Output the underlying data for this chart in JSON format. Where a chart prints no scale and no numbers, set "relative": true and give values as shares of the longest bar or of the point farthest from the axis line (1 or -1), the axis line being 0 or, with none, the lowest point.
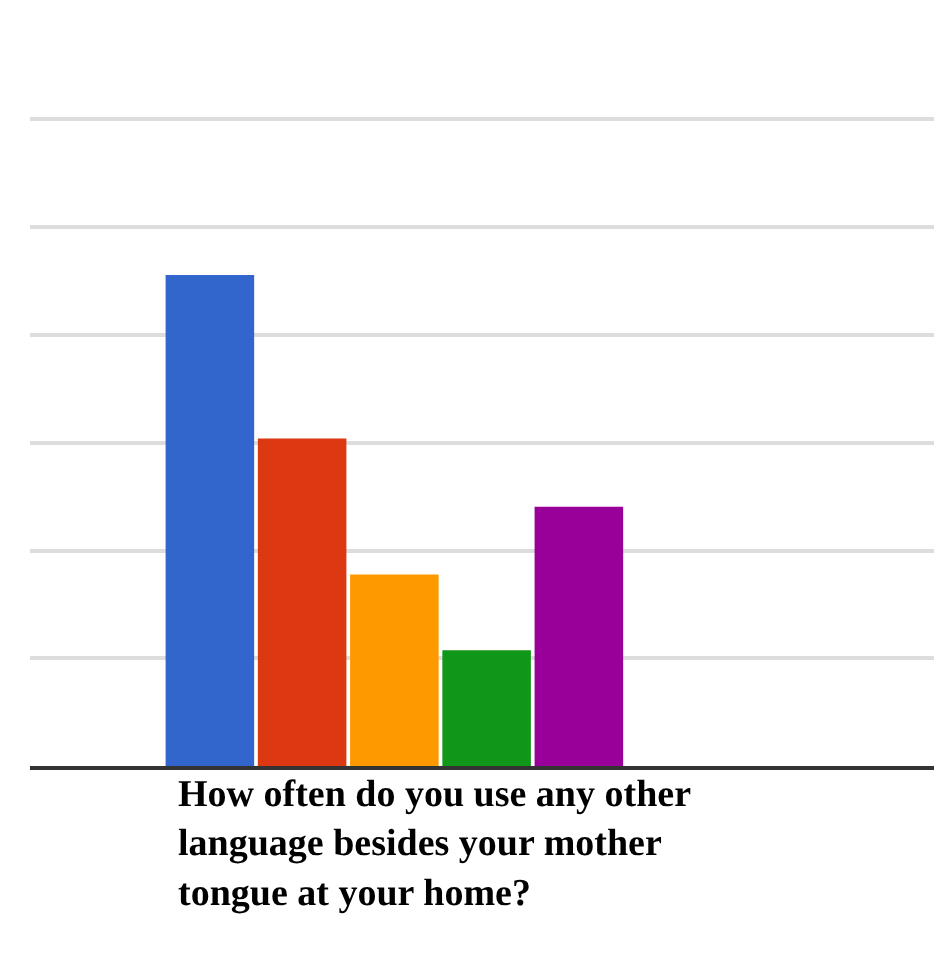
{
  "chart_data": {
    "type": "bar",
    "relative": true,
    "xlabel": "How often do you use any other\nlanguage besides your mother\ntongue at your home?",
    "categories": [
      null,
      null,
      null,
      null,
      null
    ],
    "values": [
      1,
      0.667,
      0.39,
      0.236,
      0.528
    ],
    "colors": [
      "#3366cc",
      "#dc3912",
      "#ff9900",
      "#109618",
      "#990099"
    ],
    "grid": "y"
  }
}
